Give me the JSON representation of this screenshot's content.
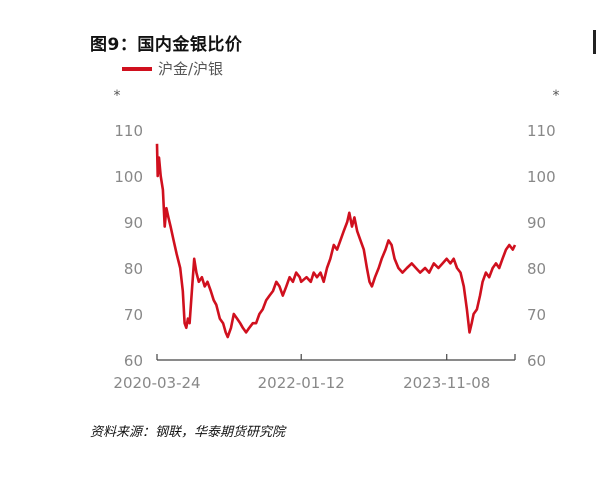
{
  "header": {
    "title": "图9：国内金银比价",
    "source": "资料来源：钢联，华泰期货研究院"
  },
  "chart_data": {
    "type": "line",
    "title": "图9：国内金银比价",
    "left_unit": "*",
    "right_unit": "*",
    "ylim": [
      60,
      110
    ],
    "yticks": [
      60,
      70,
      80,
      90,
      100,
      110
    ],
    "xlim": [
      "2020-03-24",
      "2024-09-15"
    ],
    "xticks": [
      "2020-03-24",
      "2022-01-12",
      "2023-11-08"
    ],
    "grid": false,
    "legend": "top-left",
    "series": [
      {
        "name": "沪金/沪银",
        "color": "#d0101e",
        "points": [
          [
            "2020-03-24",
            107
          ],
          [
            "2020-03-27",
            100
          ],
          [
            "2020-04-02",
            104
          ],
          [
            "2020-04-10",
            100
          ],
          [
            "2020-04-20",
            97
          ],
          [
            "2020-04-28",
            89
          ],
          [
            "2020-05-06",
            93
          ],
          [
            "2020-05-15",
            91
          ],
          [
            "2020-05-25",
            89
          ],
          [
            "2020-06-08",
            86
          ],
          [
            "2020-06-22",
            83
          ],
          [
            "2020-07-08",
            80
          ],
          [
            "2020-07-20",
            75
          ],
          [
            "2020-07-28",
            68
          ],
          [
            "2020-08-05",
            67
          ],
          [
            "2020-08-12",
            69
          ],
          [
            "2020-08-20",
            68
          ],
          [
            "2020-09-01",
            76
          ],
          [
            "2020-09-10",
            82
          ],
          [
            "2020-09-20",
            79
          ],
          [
            "2020-10-01",
            77
          ],
          [
            "2020-10-15",
            78
          ],
          [
            "2020-10-28",
            76
          ],
          [
            "2020-11-10",
            77
          ],
          [
            "2020-11-25",
            75
          ],
          [
            "2020-12-08",
            73
          ],
          [
            "2020-12-20",
            72
          ],
          [
            "2021-01-05",
            69
          ],
          [
            "2021-01-20",
            68
          ],
          [
            "2021-02-01",
            66
          ],
          [
            "2021-02-10",
            65
          ],
          [
            "2021-02-25",
            67
          ],
          [
            "2021-03-10",
            70
          ],
          [
            "2021-03-25",
            69
          ],
          [
            "2021-04-08",
            68
          ],
          [
            "2021-04-20",
            67
          ],
          [
            "2021-05-05",
            66
          ],
          [
            "2021-05-20",
            67
          ],
          [
            "2021-06-05",
            68
          ],
          [
            "2021-06-20",
            68
          ],
          [
            "2021-07-05",
            70
          ],
          [
            "2021-07-20",
            71
          ],
          [
            "2021-08-05",
            73
          ],
          [
            "2021-08-20",
            74
          ],
          [
            "2021-09-05",
            75
          ],
          [
            "2021-09-20",
            77
          ],
          [
            "2021-10-05",
            76
          ],
          [
            "2021-10-20",
            74
          ],
          [
            "2021-11-05",
            76
          ],
          [
            "2021-11-20",
            78
          ],
          [
            "2021-12-05",
            77
          ],
          [
            "2021-12-20",
            79
          ],
          [
            "2022-01-05",
            78
          ],
          [
            "2022-01-12",
            77
          ],
          [
            "2022-02-05",
            78
          ],
          [
            "2022-02-25",
            77
          ],
          [
            "2022-03-10",
            79
          ],
          [
            "2022-03-25",
            78
          ],
          [
            "2022-04-10",
            79
          ],
          [
            "2022-04-25",
            77
          ],
          [
            "2022-05-10",
            80
          ],
          [
            "2022-05-25",
            82
          ],
          [
            "2022-06-10",
            85
          ],
          [
            "2022-06-25",
            84
          ],
          [
            "2022-07-10",
            86
          ],
          [
            "2022-07-25",
            88
          ],
          [
            "2022-08-10",
            90
          ],
          [
            "2022-08-20",
            92
          ],
          [
            "2022-09-01",
            89
          ],
          [
            "2022-09-12",
            91
          ],
          [
            "2022-09-25",
            88
          ],
          [
            "2022-10-10",
            86
          ],
          [
            "2022-10-25",
            84
          ],
          [
            "2022-11-08",
            80
          ],
          [
            "2022-11-20",
            77
          ],
          [
            "2022-12-01",
            76
          ],
          [
            "2022-12-15",
            78
          ],
          [
            "2023-01-01",
            80
          ],
          [
            "2023-01-15",
            82
          ],
          [
            "2023-02-01",
            84
          ],
          [
            "2023-02-15",
            86
          ],
          [
            "2023-03-01",
            85
          ],
          [
            "2023-03-15",
            82
          ],
          [
            "2023-04-01",
            80
          ],
          [
            "2023-04-20",
            79
          ],
          [
            "2023-05-10",
            80
          ],
          [
            "2023-06-01",
            81
          ],
          [
            "2023-06-20",
            80
          ],
          [
            "2023-07-10",
            79
          ],
          [
            "2023-08-01",
            80
          ],
          [
            "2023-08-20",
            79
          ],
          [
            "2023-09-10",
            81
          ],
          [
            "2023-10-01",
            80
          ],
          [
            "2023-10-20",
            81
          ],
          [
            "2023-11-08",
            82
          ],
          [
            "2023-11-25",
            81
          ],
          [
            "2023-12-10",
            82
          ],
          [
            "2023-12-25",
            80
          ],
          [
            "2024-01-10",
            79
          ],
          [
            "2024-01-25",
            76
          ],
          [
            "2024-02-08",
            71
          ],
          [
            "2024-02-20",
            66
          ],
          [
            "2024-03-01",
            68
          ],
          [
            "2024-03-10",
            70
          ],
          [
            "2024-03-25",
            71
          ],
          [
            "2024-04-08",
            74
          ],
          [
            "2024-04-20",
            77
          ],
          [
            "2024-05-05",
            79
          ],
          [
            "2024-05-20",
            78
          ],
          [
            "2024-06-05",
            80
          ],
          [
            "2024-06-20",
            81
          ],
          [
            "2024-07-05",
            80
          ],
          [
            "2024-07-20",
            82
          ],
          [
            "2024-08-05",
            84
          ],
          [
            "2024-08-20",
            85
          ],
          [
            "2024-09-05",
            84
          ],
          [
            "2024-09-15",
            85
          ]
        ]
      }
    ]
  }
}
